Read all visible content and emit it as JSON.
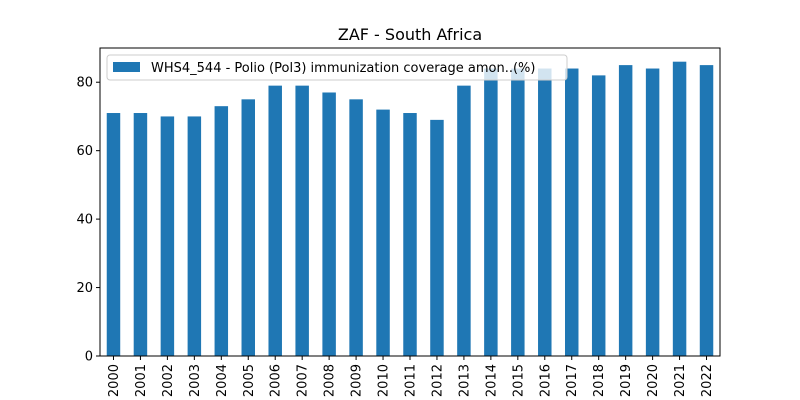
{
  "chart_data": {
    "type": "bar",
    "title": "ZAF - South Africa",
    "xlabel": "",
    "ylabel": "",
    "categories": [
      "2000",
      "2001",
      "2002",
      "2003",
      "2004",
      "2005",
      "2006",
      "2007",
      "2008",
      "2009",
      "2010",
      "2011",
      "2012",
      "2013",
      "2014",
      "2015",
      "2016",
      "2017",
      "2018",
      "2019",
      "2020",
      "2021",
      "2022"
    ],
    "series": [
      {
        "name": "WHS4_544 - Polio (Pol3) immunization coverage amon..(%)",
        "values": [
          71,
          71,
          70,
          70,
          73,
          75,
          79,
          79,
          77,
          75,
          72,
          71,
          69,
          79,
          84,
          84,
          84,
          84,
          82,
          85,
          84,
          86,
          85
        ],
        "color": "#1f77b4"
      }
    ],
    "ylim": [
      0,
      90
    ],
    "yticks": [
      0,
      20,
      40,
      60,
      80
    ],
    "grid": false,
    "legend": "top-left"
  }
}
